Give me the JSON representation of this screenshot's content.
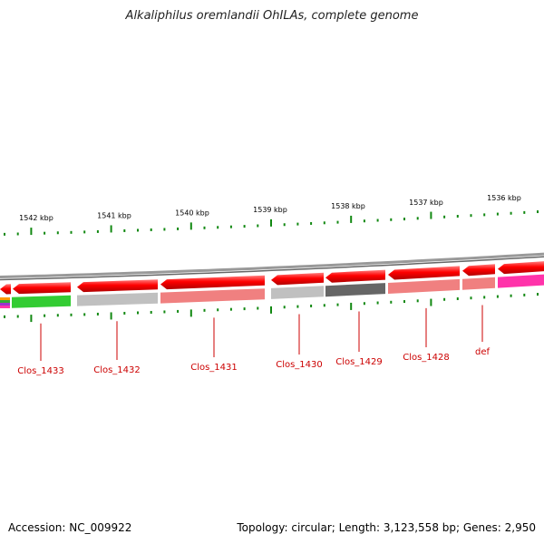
{
  "title": "Alkaliphilus oremlandii OhILAs, complete genome",
  "footer": {
    "accession": "Accession: NC_009922",
    "stats": "Topology: circular; Length: 3,123,558 bp; Genes: 2,950"
  },
  "scale": {
    "tick_labels": [
      "1542 kbp",
      "1541 kbp",
      "1540 kbp",
      "1539 kbp",
      "1538 kbp",
      "1537 kbp",
      "1536 kbp"
    ]
  },
  "genes": [
    {
      "label": "Clos_1433",
      "color": "#33cc33"
    },
    {
      "label": "Clos_1432",
      "color": "#c0c0c0"
    },
    {
      "label": "Clos_1431",
      "color": "#f08080"
    },
    {
      "label": "Clos_1430",
      "color": "#c0c0c0"
    },
    {
      "label": "Clos_1429",
      "color": "#666666"
    },
    {
      "label": "Clos_1428",
      "color": "#f08080"
    },
    {
      "label": "def",
      "color": "#f08080"
    }
  ],
  "colors": {
    "feature_arrow": "#ff0000",
    "backbone": "#888888",
    "tick": "#118811",
    "gene_label": "#cc0000",
    "magenta_gene": "#ff33aa"
  }
}
